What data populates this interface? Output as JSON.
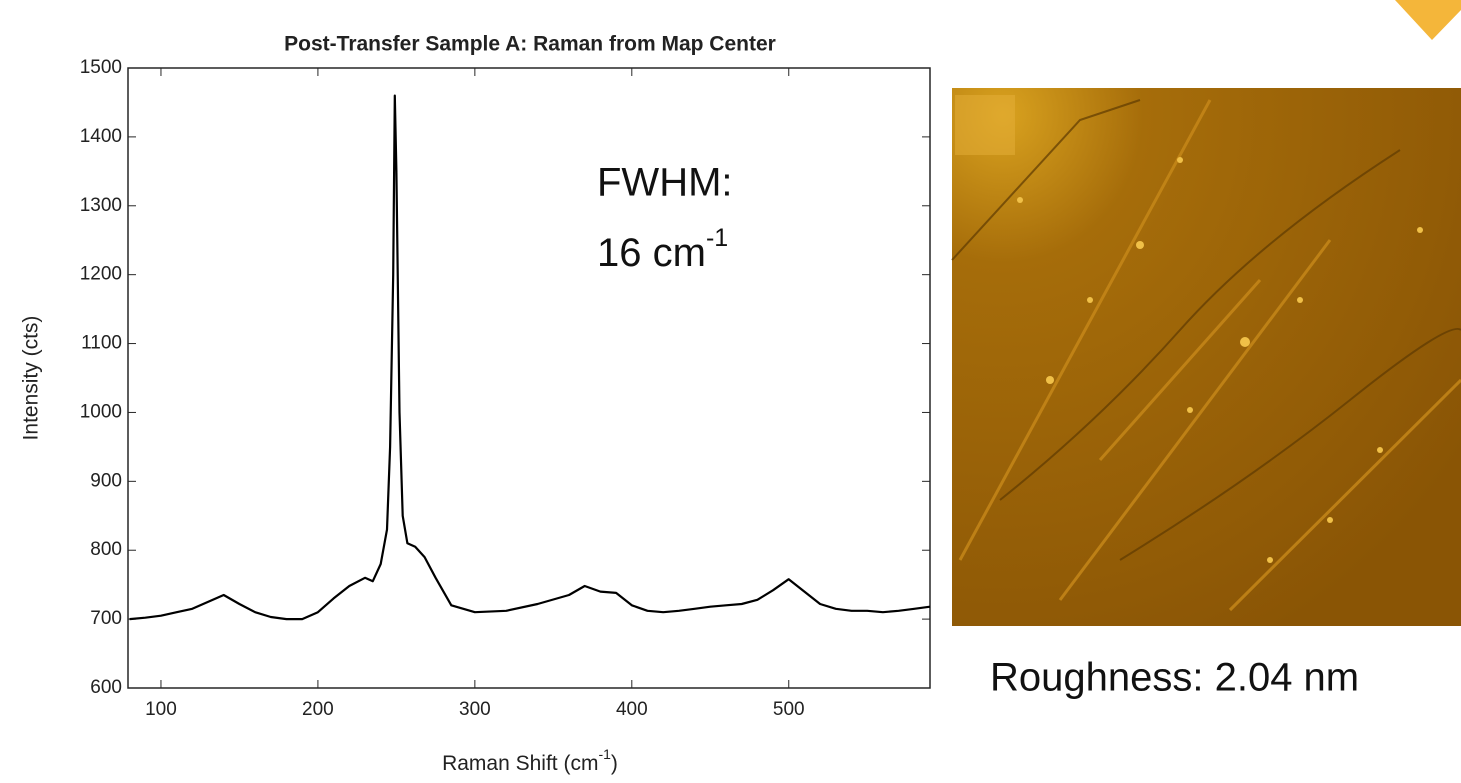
{
  "chart_data": {
    "type": "line",
    "title": "Post-Transfer Sample A: Raman from Map Center",
    "x_label": {
      "text": "Raman Shift (cm",
      "sup": "-1",
      "tail": ")"
    },
    "y_label": "Intensity (cts)",
    "x": [
      80,
      90,
      100,
      110,
      120,
      130,
      140,
      150,
      160,
      170,
      180,
      190,
      200,
      210,
      220,
      230,
      235,
      240,
      244,
      246,
      248,
      249,
      250,
      252,
      254,
      257,
      262,
      268,
      275,
      285,
      300,
      320,
      340,
      360,
      370,
      380,
      390,
      400,
      410,
      420,
      430,
      440,
      450,
      460,
      470,
      480,
      490,
      500,
      510,
      520,
      530,
      540,
      550,
      560,
      570,
      580,
      590
    ],
    "values": [
      700,
      702,
      705,
      710,
      715,
      725,
      735,
      722,
      710,
      703,
      700,
      700,
      710,
      730,
      748,
      760,
      755,
      780,
      830,
      950,
      1200,
      1460,
      1350,
      1000,
      850,
      810,
      805,
      790,
      760,
      720,
      710,
      712,
      722,
      735,
      748,
      740,
      738,
      720,
      712,
      710,
      712,
      715,
      718,
      720,
      722,
      728,
      742,
      758,
      740,
      722,
      715,
      712,
      712,
      710,
      712,
      715,
      718
    ],
    "color": "#000000",
    "xlim": [
      79,
      590
    ],
    "ylim": [
      600,
      1500
    ],
    "xticks": [
      100,
      200,
      300,
      400,
      500
    ],
    "yticks": [
      600,
      700,
      800,
      900,
      1000,
      1100,
      1200,
      1300,
      1400,
      1500
    ],
    "annotations": {
      "fwhm_label": "FWHM:",
      "fwhm_value": {
        "text": "16 cm",
        "sup": "-1"
      },
      "roughness": "Roughness: 2.04 nm"
    }
  }
}
